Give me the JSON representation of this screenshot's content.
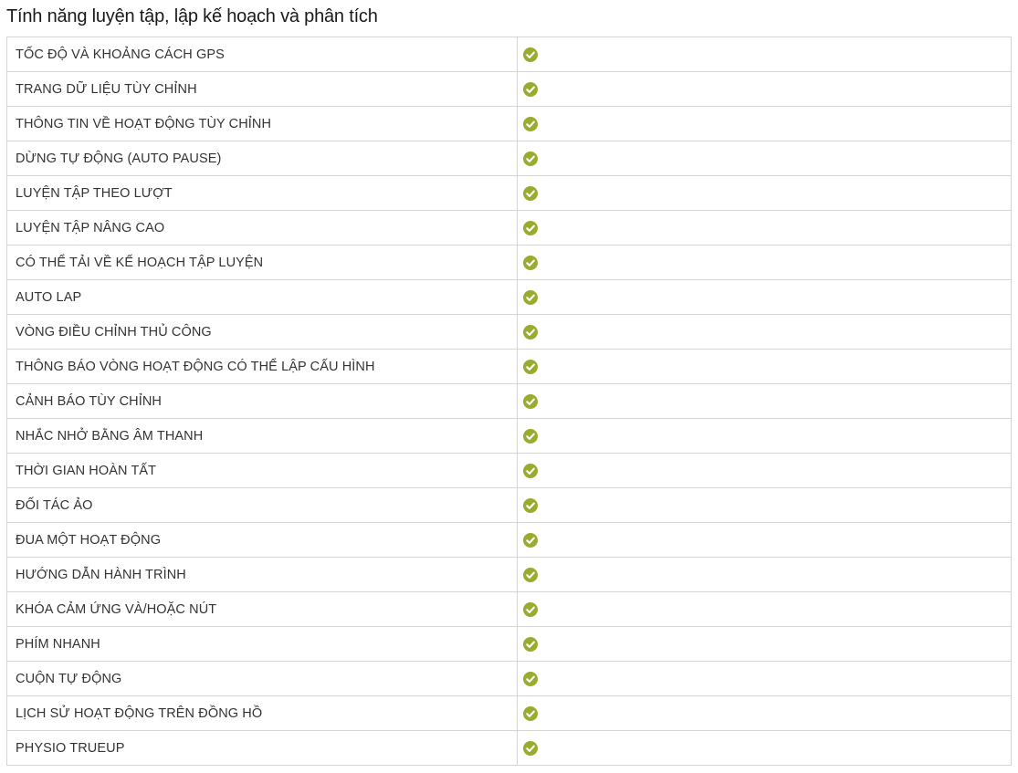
{
  "section": {
    "title": "Tính năng luyện tập, lập kế hoạch và phân tích"
  },
  "check_color": "#9aab2d",
  "features": [
    {
      "label": "TỐC ĐỘ VÀ KHOẢNG CÁCH GPS",
      "supported": true,
      "icon": "check-circle-icon"
    },
    {
      "label": "TRANG DỮ LIỆU TÙY CHỈNH",
      "supported": true,
      "icon": "check-circle-icon"
    },
    {
      "label": "THÔNG TIN VỀ HOẠT ĐỘNG TÙY CHỈNH",
      "supported": true,
      "icon": "check-circle-icon"
    },
    {
      "label": "DỪNG TỰ ĐỘNG (AUTO PAUSE)",
      "supported": true,
      "icon": "check-circle-icon"
    },
    {
      "label": "LUYỆN TẬP THEO LƯỢT",
      "supported": true,
      "icon": "check-circle-icon"
    },
    {
      "label": "LUYỆN TẬP NÂNG CAO",
      "supported": true,
      "icon": "check-circle-icon"
    },
    {
      "label": "CÓ THỂ TẢI VỀ KẾ HOẠCH TẬP LUYỆN",
      "supported": true,
      "icon": "check-circle-icon"
    },
    {
      "label": "AUTO LAP",
      "supported": true,
      "icon": "check-circle-icon"
    },
    {
      "label": "VÒNG ĐIỀU CHỈNH THỦ CÔNG",
      "supported": true,
      "icon": "check-circle-icon"
    },
    {
      "label": "THÔNG BÁO VÒNG HOẠT ĐỘNG CÓ THỂ LẬP CẤU HÌNH",
      "supported": true,
      "icon": "check-circle-icon"
    },
    {
      "label": "CẢNH BÁO TÙY CHỈNH",
      "supported": true,
      "icon": "check-circle-icon"
    },
    {
      "label": "NHẮC NHỞ BẰNG ÂM THANH",
      "supported": true,
      "icon": "check-circle-icon"
    },
    {
      "label": "THỜI GIAN HOÀN TẤT",
      "supported": true,
      "icon": "check-circle-icon"
    },
    {
      "label": "ĐỐI TÁC ẢO",
      "supported": true,
      "icon": "check-circle-icon"
    },
    {
      "label": "ĐUA MỘT HOẠT ĐỘNG",
      "supported": true,
      "icon": "check-circle-icon"
    },
    {
      "label": "HƯỚNG DẪN HÀNH TRÌNH",
      "supported": true,
      "icon": "check-circle-icon"
    },
    {
      "label": "KHÓA CẢM ỨNG VÀ/HOẶC NÚT",
      "supported": true,
      "icon": "check-circle-icon"
    },
    {
      "label": "PHÍM NHANH",
      "supported": true,
      "icon": "check-circle-icon"
    },
    {
      "label": "CUỘN TỰ ĐỘNG",
      "supported": true,
      "icon": "check-circle-icon"
    },
    {
      "label": "LỊCH SỬ HOẠT ĐỘNG TRÊN ĐỒNG HỒ",
      "supported": true,
      "icon": "check-circle-icon"
    },
    {
      "label": "PHYSIO TRUEUP",
      "supported": true,
      "icon": "check-circle-icon"
    }
  ]
}
